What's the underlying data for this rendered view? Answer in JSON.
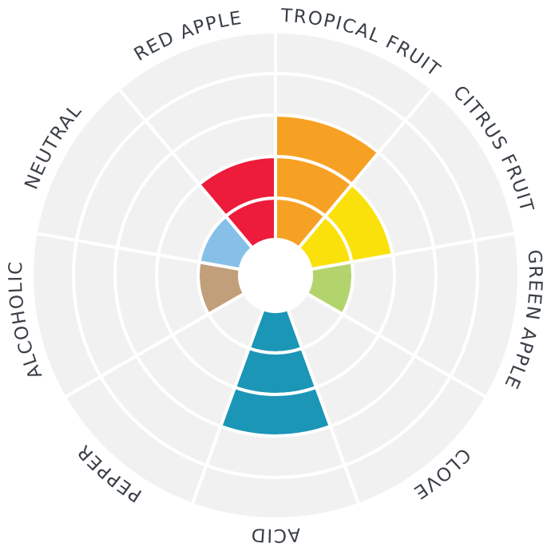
{
  "chart_data": {
    "type": "radial-bar",
    "title": "",
    "scale_max": 5,
    "grid": true,
    "background_color": "#f1f1f1",
    "categories": [
      "TROPICAL FRUIT",
      "CITRUS FRUIT",
      "GREEN APPLE",
      "CLOVE",
      "ACID",
      "PEPPER",
      "ALCOHOLIC",
      "NEUTRAL",
      "RED APPLE"
    ],
    "values": [
      3,
      2,
      1,
      0,
      3,
      0,
      1,
      1,
      2
    ],
    "colors": [
      "#f7a124",
      "#fbe10b",
      "#b3d46c",
      "#cccccc",
      "#1b96b6",
      "#cccccc",
      "#c19f7a",
      "#86c0e8",
      "#ec1c3a"
    ]
  }
}
